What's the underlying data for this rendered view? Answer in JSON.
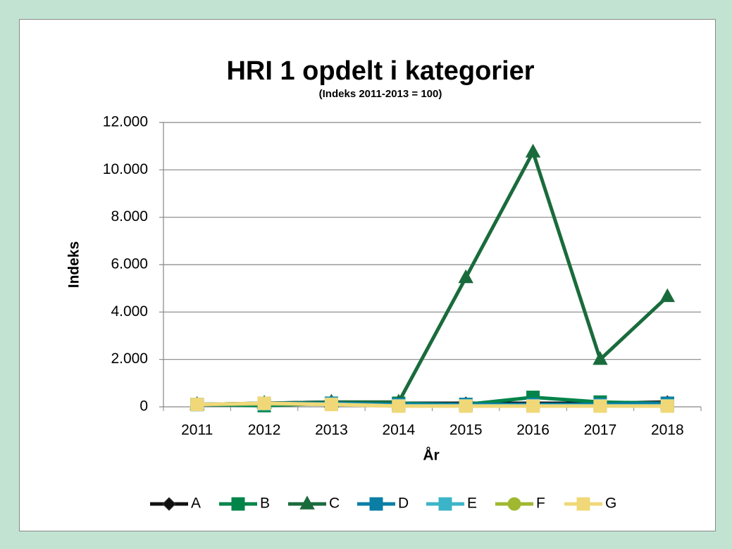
{
  "chart_data": {
    "type": "line",
    "title": "HRI 1 opdelt i kategorier",
    "subtitle": "(Indeks 2011-2013 = 100)",
    "x_label": "År",
    "y_label": "Indeks",
    "categories": [
      "2011",
      "2012",
      "2013",
      "2014",
      "2015",
      "2016",
      "2017",
      "2018"
    ],
    "ylim": [
      0,
      12000
    ],
    "yticks": [
      0,
      {
        "value": 2000,
        "label": "2.000"
      },
      {
        "value": 4000,
        "label": "4.000"
      },
      {
        "value": 6000,
        "label": "6.000"
      },
      {
        "value": 8000,
        "label": "8.000"
      },
      {
        "value": 10000,
        "label": "10.000"
      },
      {
        "value": 12000,
        "label": "12.000"
      }
    ],
    "grid": true,
    "legend": "bottom",
    "series": [
      {
        "name": "A",
        "color": "#111111",
        "marker": "diamond",
        "values": [
          100,
          150,
          200,
          150,
          150,
          150,
          150,
          200
        ]
      },
      {
        "name": "B",
        "color": "#00844a",
        "marker": "square",
        "values": [
          100,
          50,
          150,
          150,
          100,
          400,
          200,
          150
        ]
      },
      {
        "name": "C",
        "color": "#1a6b3c",
        "marker": "triangle",
        "values": [
          100,
          150,
          200,
          200,
          5450,
          10750,
          2000,
          4650
        ]
      },
      {
        "name": "D",
        "color": "#0a7ea4",
        "marker": "square",
        "values": [
          100,
          150,
          150,
          100,
          100,
          100,
          100,
          150
        ]
      },
      {
        "name": "E",
        "color": "#3cb4c8",
        "marker": "square",
        "values": [
          100,
          120,
          120,
          50,
          50,
          50,
          50,
          50
        ]
      },
      {
        "name": "F",
        "color": "#a0b830",
        "marker": "circle",
        "values": [
          100,
          130,
          100,
          30,
          30,
          30,
          30,
          30
        ]
      },
      {
        "name": "G",
        "color": "#f0d878",
        "marker": "square",
        "values": [
          100,
          150,
          100,
          30,
          30,
          30,
          30,
          30
        ]
      }
    ]
  }
}
